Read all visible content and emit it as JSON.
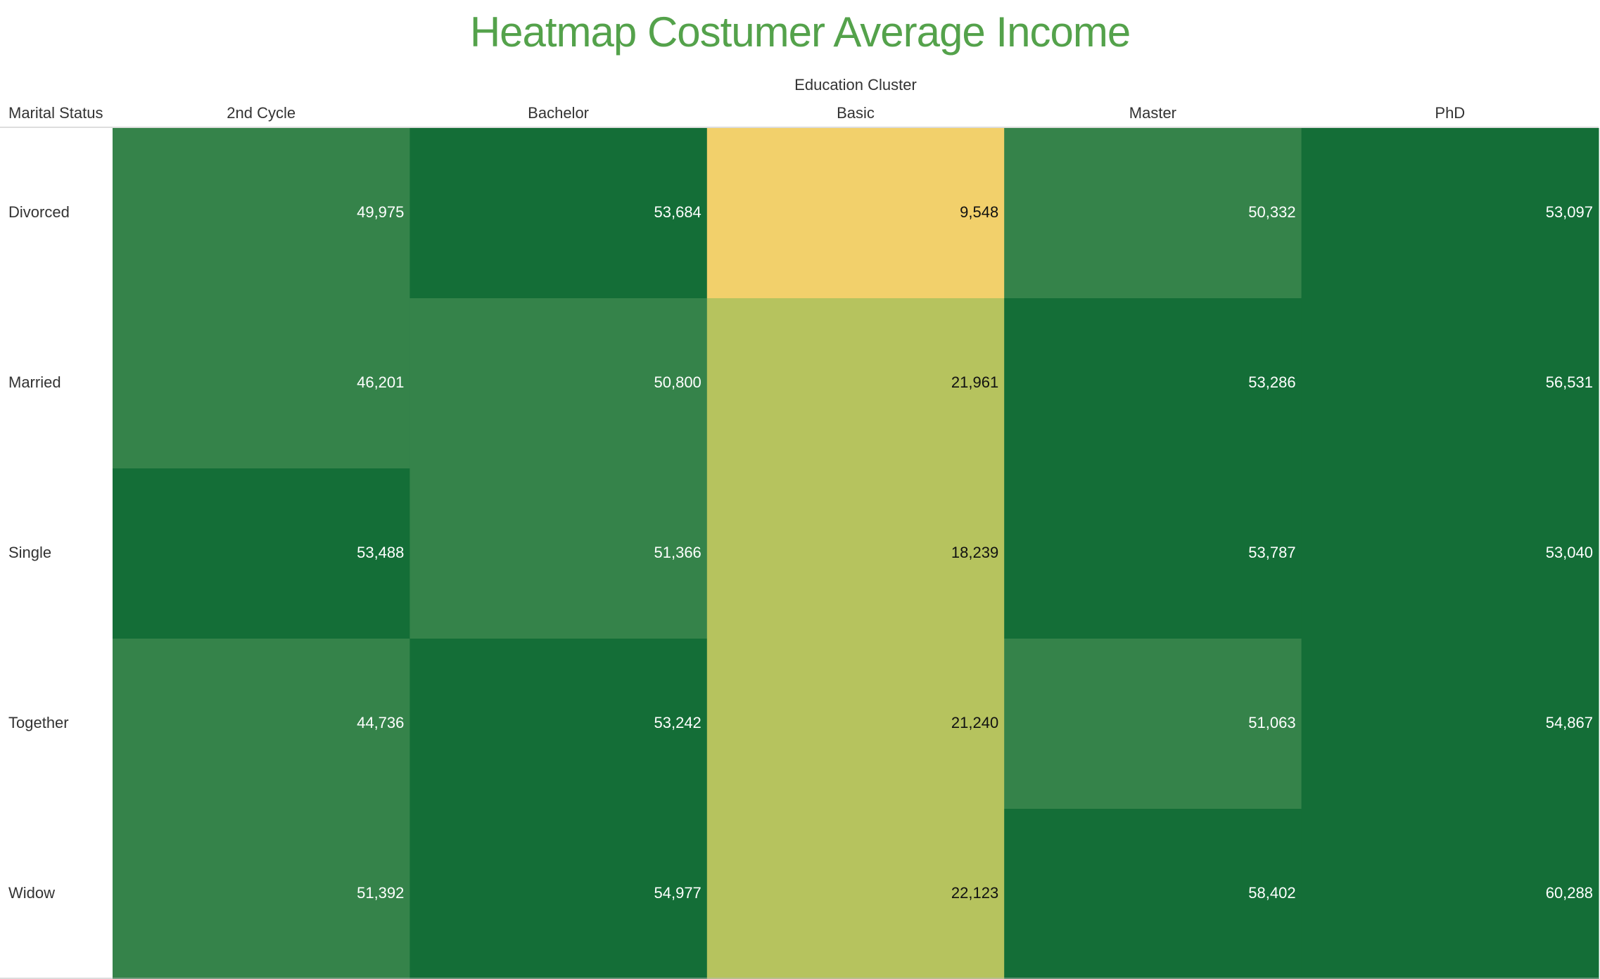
{
  "colors": {
    "title": "#54a24b",
    "header_text": "#333333",
    "row_label_text": "#333333",
    "dark_text": "#111111",
    "light_text": "#ffffff",
    "scale": [
      "#f2d06b",
      "#b6c35e",
      "#35834a",
      "#146e37"
    ],
    "rule": "#bbbbbb"
  },
  "chart_data": {
    "type": "heatmap",
    "title": "Heatmap Costumer Average Income",
    "column_group_label": "Education Cluster",
    "row_header": "Marital Status",
    "columns": [
      "2nd Cycle",
      "Bachelor",
      "Basic",
      "Master",
      "PhD"
    ],
    "rows": [
      "Divorced",
      "Married",
      "Single",
      "Together",
      "Widow"
    ],
    "values": [
      [
        49975,
        53684,
        9548,
        50332,
        53097
      ],
      [
        46201,
        50800,
        21961,
        53286,
        56531
      ],
      [
        53488,
        51366,
        18239,
        53787,
        53040
      ],
      [
        44736,
        53242,
        21240,
        51063,
        54867
      ],
      [
        51392,
        54977,
        22123,
        58402,
        60288
      ]
    ],
    "value_labels": [
      [
        "49,975",
        "53,684",
        "9,548",
        "50,332",
        "53,097"
      ],
      [
        "46,201",
        "50,800",
        "21,961",
        "53,286",
        "56,531"
      ],
      [
        "53,488",
        "51,366",
        "18,239",
        "53,787",
        "53,040"
      ],
      [
        "44,736",
        "53,242",
        "21,240",
        "51,063",
        "54,867"
      ],
      [
        "51,392",
        "54,977",
        "22,123",
        "58,402",
        "60,288"
      ]
    ],
    "color_bins": [
      {
        "max": 15000,
        "color": "#f2d06b",
        "text": "dark"
      },
      {
        "max": 30000,
        "color": "#b6c35e",
        "text": "dark"
      },
      {
        "max": 52000,
        "color": "#35834a",
        "text": "light"
      },
      {
        "max": 1000000,
        "color": "#146e37",
        "text": "light"
      }
    ],
    "grid": false,
    "legend": "none"
  }
}
